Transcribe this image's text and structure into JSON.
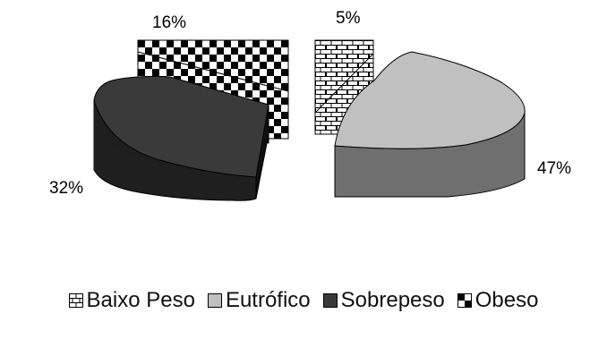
{
  "chart_data": {
    "type": "pie",
    "style": "3d-exploded",
    "title": "",
    "slices": [
      {
        "key": "baixo",
        "label": "Baixo Peso",
        "value": 5,
        "value_label": "5%",
        "fill": "pattern-brick",
        "color": "#ffffff"
      },
      {
        "key": "eutrofico",
        "label": "Eutrófico",
        "value": 47,
        "value_label": "47%",
        "fill": "solid",
        "color": "#c0c0c0",
        "side_color": "#6f6f6f"
      },
      {
        "key": "sobrepeso",
        "label": "Sobrepeso",
        "value": 32,
        "value_label": "32%",
        "fill": "solid",
        "color": "#3a3a3a",
        "side_color": "#1e1e1e"
      },
      {
        "key": "obeso",
        "label": "Obeso",
        "value": 16,
        "value_label": "16%",
        "fill": "pattern-checker",
        "color": "#000000"
      }
    ],
    "legend_position": "bottom"
  }
}
